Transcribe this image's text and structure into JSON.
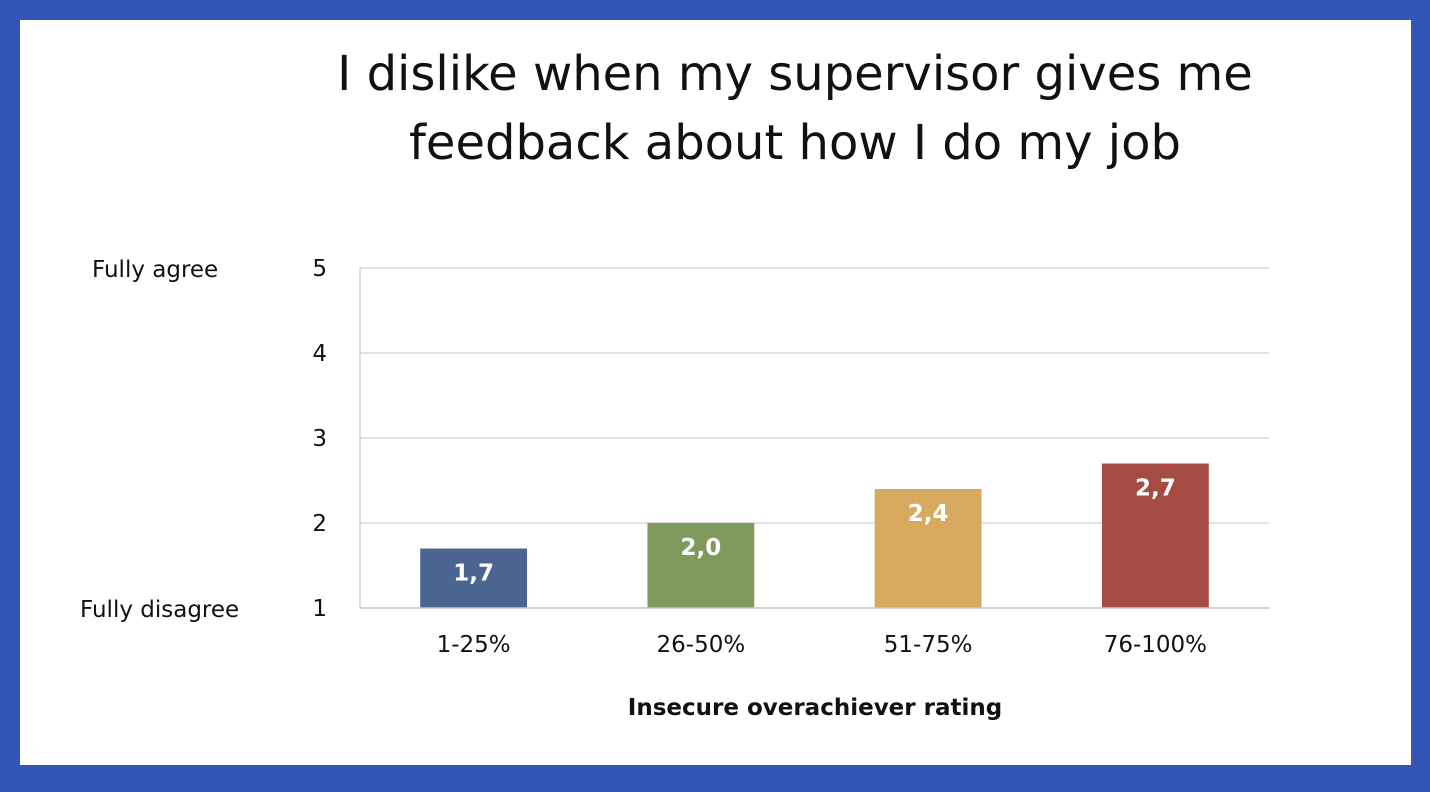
{
  "chart_data": {
    "type": "bar",
    "title_lines": [
      "I dislike when my supervisor gives me",
      "feedback about how I do my job"
    ],
    "categories": [
      "1-25%",
      "26-50%",
      "51-75%",
      "76-100%"
    ],
    "values": [
      1.7,
      2.0,
      2.4,
      2.7
    ],
    "value_labels": [
      "1,7",
      "2,0",
      "2,4",
      "2,7"
    ],
    "colors": [
      "#4a6591",
      "#7f9a5c",
      "#d8aa60",
      "#a44c43"
    ],
    "xlabel": "Insecure overachiever rating",
    "ylabel": "",
    "ylim": [
      1,
      5
    ],
    "yticks": [
      1,
      2,
      3,
      4,
      5
    ],
    "y_anchor_labels": {
      "top": "Fully agree",
      "bottom": "Fully disagree"
    },
    "grid": true,
    "legend": "none"
  }
}
